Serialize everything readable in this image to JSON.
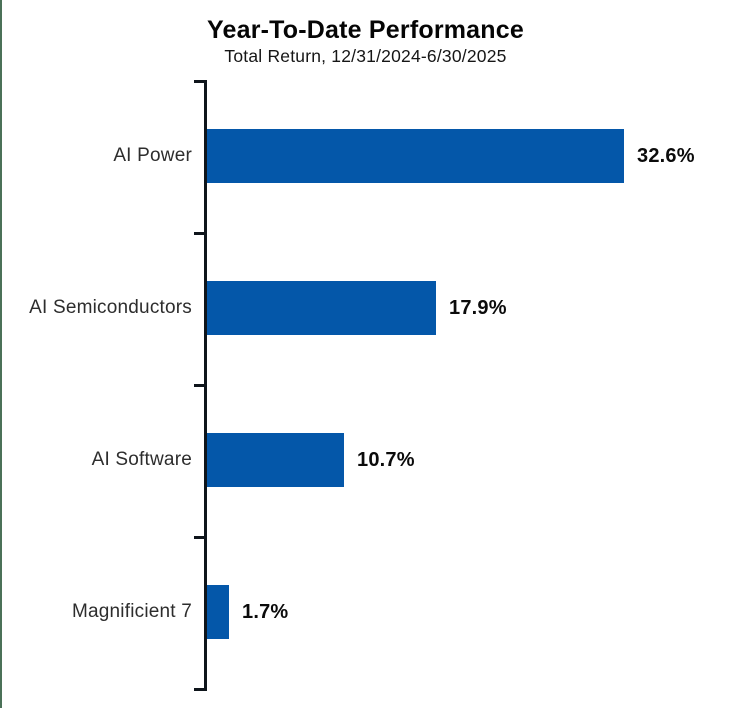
{
  "header": {
    "title": "Year-To-Date Performance",
    "subtitle": "Total Return, 12/31/2024-6/30/2025"
  },
  "chart_data": {
    "type": "bar",
    "orientation": "horizontal",
    "title": "Year-To-Date Performance",
    "subtitle": "Total Return, 12/31/2024-6/30/2025",
    "categories": [
      "AI Power",
      "AI Semiconductors",
      "AI Software",
      "Magnificient 7"
    ],
    "values": [
      32.6,
      17.9,
      10.7,
      1.7
    ],
    "value_labels": [
      "32.6%",
      "17.9%",
      "10.7%",
      "1.7%"
    ],
    "xlabel": "",
    "ylabel": "",
    "xlim": [
      0,
      41
    ],
    "grid": false,
    "legend": false,
    "bar_color": "#0457A9",
    "axis_color": "#0E151B",
    "category_label_color": "#2d2d2d",
    "value_label_color": "#0b0b0b",
    "accent_color": "#4B7158"
  }
}
